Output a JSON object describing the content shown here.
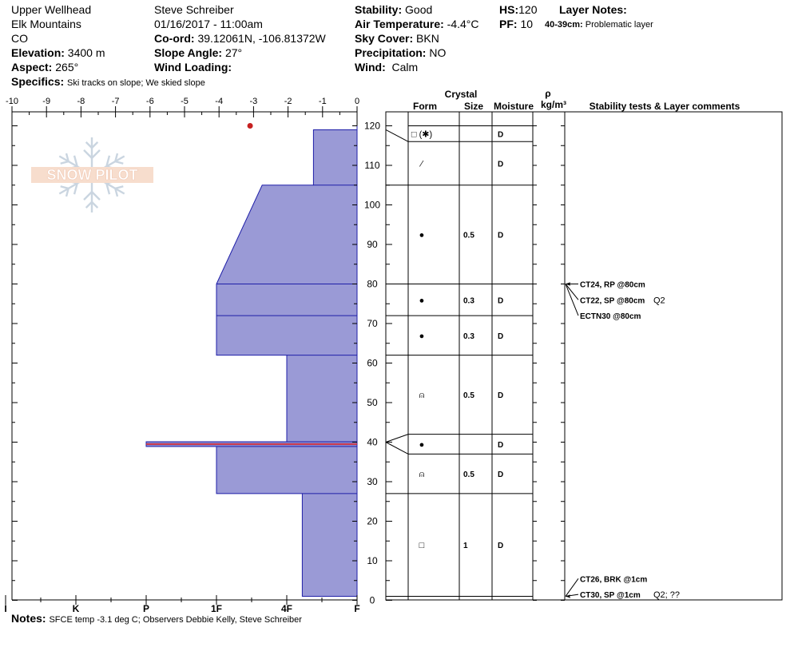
{
  "header": {
    "location": "Upper Wellhead",
    "range": "Elk Mountains",
    "state": "CO",
    "elevation_label": "Elevation:",
    "elevation": "3400 m",
    "aspect_label": "Aspect:",
    "aspect": "265°",
    "specifics_label": "Specifics:",
    "specifics": "Ski tracks on slope; We skied slope",
    "observer": "Steve Schreiber",
    "datetime": "01/16/2017 - 11:00am",
    "coord_label": "Co-ord:",
    "coord": "39.12061N, -106.81372W",
    "slope_label": "Slope Angle:",
    "slope": "27°",
    "wind_loading_label": "Wind Loading:",
    "wind_loading": "",
    "stability_label": "Stability:",
    "stability": "Good",
    "air_temp_label": "Air Temperature:",
    "air_temp": "-4.4°C",
    "sky_label": "Sky Cover:",
    "sky": "BKN",
    "precip_label": "Precipitation:",
    "precip": "NO",
    "wind_label": "Wind:",
    "wind": "Calm",
    "hs_label": "HS:",
    "hs": "120",
    "pf_label": "PF:",
    "pf": "10",
    "layer_notes_label": "Layer Notes:",
    "layer_note_range": "40-39cm:",
    "layer_note_text": "Problematic layer"
  },
  "notes": {
    "label": "Notes:",
    "text": "SFCE temp -3.1 deg C; Observers Debbie Kelly, Steve Schreiber"
  },
  "logo_text": "SNOW PILOT",
  "table_headers": {
    "crystal": "Crystal",
    "form": "Form",
    "size": "Size",
    "moisture": "Moisture",
    "rho": "ρ",
    "density_unit": "kg/m³",
    "comments": "Stability tests & Layer comments"
  },
  "chart_data": {
    "type": "area",
    "top_axis": {
      "min": -10,
      "max": 0,
      "ticks": [
        "-10",
        "-9",
        "-8",
        "-7",
        "-6",
        "-5",
        "-4",
        "-3",
        "-2",
        "-1",
        "0"
      ]
    },
    "height_axis": {
      "min": 0,
      "max": 120,
      "ticks": [
        "0",
        "10",
        "20",
        "30",
        "40",
        "50",
        "60",
        "70",
        "80",
        "90",
        "100",
        "110",
        "120"
      ]
    },
    "hardness_scale": [
      "I",
      "K",
      "P",
      "1F",
      "4F",
      "F"
    ],
    "hardness_ticks": [
      {
        "label": "I",
        "v": 5
      },
      {
        "label": "K",
        "v": 4
      },
      {
        "label": "P",
        "v": 3
      },
      {
        "label": "1F",
        "v": 2
      },
      {
        "label": "4F",
        "v": 1
      },
      {
        "label": "F",
        "v": 0
      }
    ],
    "surface_temp": {
      "temp": -3.1,
      "depth": 120
    },
    "hardness_profile": [
      {
        "bottom": 119,
        "top": 120,
        "hardness": "F"
      },
      {
        "bottom": 105,
        "top": 119,
        "hardness": "4F-F"
      },
      {
        "bottom": 80,
        "top": 105,
        "hardness": "1F to 4F"
      },
      {
        "bottom": 72,
        "top": 80,
        "hardness": "1F"
      },
      {
        "bottom": 62,
        "top": 72,
        "hardness": "1F"
      },
      {
        "bottom": 40,
        "top": 62,
        "hardness": "4F"
      },
      {
        "bottom": 39,
        "top": 40,
        "hardness": "P"
      },
      {
        "bottom": 27,
        "top": 39,
        "hardness": "1F"
      },
      {
        "bottom": 1,
        "top": 27,
        "hardness": "4F-F"
      },
      {
        "bottom": 0,
        "top": 1,
        "hardness": "F"
      }
    ],
    "profile_polygon": [
      {
        "v": 0,
        "h": 120
      },
      {
        "v": 0,
        "h": 119
      },
      {
        "v": 0.62,
        "h": 119
      },
      {
        "v": 0.62,
        "h": 105
      },
      {
        "v": 1.35,
        "h": 105
      },
      {
        "v": 2,
        "h": 80
      },
      {
        "v": 2,
        "h": 62
      },
      {
        "v": 1,
        "h": 62
      },
      {
        "v": 1,
        "h": 40
      },
      {
        "v": 3,
        "h": 40
      },
      {
        "v": 3,
        "h": 39
      },
      {
        "v": 2,
        "h": 39
      },
      {
        "v": 2,
        "h": 27
      },
      {
        "v": 0.78,
        "h": 27
      },
      {
        "v": 0.78,
        "h": 1
      },
      {
        "v": 0,
        "h": 1
      }
    ],
    "outline_segments": [
      [
        {
          "v": 0.62,
          "h": 119
        },
        {
          "v": 0,
          "h": 119
        }
      ],
      [
        {
          "v": 2,
          "h": 80
        },
        {
          "v": 0,
          "h": 80
        }
      ],
      [
        {
          "v": 2,
          "h": 72
        },
        {
          "v": 0,
          "h": 72
        }
      ],
      [
        {
          "v": 1,
          "h": 62
        },
        {
          "v": 0,
          "h": 62
        }
      ],
      [
        {
          "v": 2,
          "h": 39
        },
        {
          "v": 0,
          "h": 39
        }
      ],
      [
        {
          "v": 0.78,
          "h": 27
        },
        {
          "v": 0,
          "h": 27
        }
      ],
      [
        {
          "v": 0.62,
          "h": 105
        },
        {
          "v": 0,
          "h": 105
        }
      ]
    ],
    "problem_layer": {
      "top": 40,
      "bottom": 39
    },
    "table_boundaries": [
      120,
      116,
      105,
      80,
      72,
      62,
      42,
      37,
      27,
      1
    ],
    "leader_lines": [
      {
        "plot_h": 119,
        "table_h": 116
      },
      {
        "plot_h": 40,
        "table_h": 42
      },
      {
        "plot_h": 40,
        "table_h": 37
      }
    ],
    "layers": [
      {
        "mid": 118,
        "form": "□ (✱)",
        "size": "",
        "moisture": "D"
      },
      {
        "mid": 110.5,
        "form": "⁄",
        "size": "",
        "moisture": "D"
      },
      {
        "mid": 92.5,
        "form": "●",
        "size": "0.5",
        "moisture": "D"
      },
      {
        "mid": 76,
        "form": "●",
        "size": "0.3",
        "moisture": "D"
      },
      {
        "mid": 67,
        "form": "●",
        "size": "0.3",
        "moisture": "D"
      },
      {
        "mid": 52,
        "form": "⍝",
        "size": "0.5",
        "moisture": "D"
      },
      {
        "mid": 39.5,
        "form": "●",
        "size": "",
        "moisture": "D"
      },
      {
        "mid": 32,
        "form": "⍝",
        "size": "0.5",
        "moisture": "D"
      },
      {
        "mid": 14,
        "form": "□",
        "size": "1",
        "moisture": "D"
      }
    ],
    "stability_tests": [
      {
        "label": "CT24, RP @80cm",
        "extra": "",
        "y": 80,
        "ty": 80
      },
      {
        "label": "CT22, SP @80cm",
        "extra": "Q2",
        "y": 76,
        "ty": 80
      },
      {
        "label": "ECTN30 @80cm",
        "extra": "",
        "y": 72,
        "ty": 80
      },
      {
        "label": "CT26, BRK @1cm",
        "extra": "",
        "y": 5.5,
        "ty": 1
      },
      {
        "label": "CT30, SP @1cm",
        "extra": "Q2; ??",
        "y": 1.5,
        "ty": 1
      }
    ]
  }
}
